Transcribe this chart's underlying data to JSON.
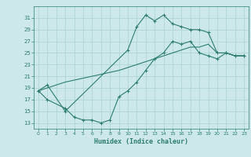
{
  "title": "",
  "xlabel": "Humidex (Indice chaleur)",
  "background_color": "#cce8ea",
  "grid_color": "#b0d4d6",
  "line_color": "#2e7d6e",
  "ylim": [
    12,
    33
  ],
  "xlim": [
    -0.5,
    23.5
  ],
  "yticks": [
    13,
    15,
    17,
    19,
    21,
    23,
    25,
    27,
    29,
    31
  ],
  "xticks": [
    0,
    1,
    2,
    3,
    4,
    5,
    6,
    7,
    8,
    9,
    10,
    11,
    12,
    13,
    14,
    15,
    16,
    17,
    18,
    19,
    20,
    21,
    22,
    23
  ],
  "line1_x": [
    0,
    1,
    3,
    10,
    11,
    12,
    13,
    14,
    15,
    16,
    17,
    18,
    19,
    20,
    21,
    22,
    23
  ],
  "line1_y": [
    18.5,
    19.5,
    15.0,
    25.5,
    29.5,
    31.5,
    30.5,
    31.5,
    30.0,
    29.5,
    29.0,
    29.0,
    28.5,
    25.0,
    25.0,
    24.5,
    24.5
  ],
  "line2_x": [
    0,
    1,
    3,
    6,
    9,
    12,
    15,
    16,
    17,
    18,
    19,
    20,
    21,
    22,
    23
  ],
  "line2_y": [
    18.5,
    19.0,
    20.0,
    21.0,
    22.0,
    23.5,
    25.0,
    25.5,
    26.0,
    26.0,
    26.5,
    25.0,
    25.0,
    24.5,
    24.5
  ],
  "line3_x": [
    0,
    1,
    3,
    4,
    5,
    6,
    7,
    8,
    9,
    10,
    11,
    12,
    13,
    14,
    15,
    16,
    17,
    18,
    19,
    20,
    21,
    22,
    23
  ],
  "line3_y": [
    18.5,
    17.0,
    15.5,
    14.0,
    13.5,
    13.5,
    13.0,
    13.5,
    17.5,
    18.5,
    20.0,
    22.0,
    24.0,
    25.0,
    27.0,
    26.5,
    27.0,
    25.0,
    24.5,
    24.0,
    25.0,
    24.5,
    24.5
  ]
}
